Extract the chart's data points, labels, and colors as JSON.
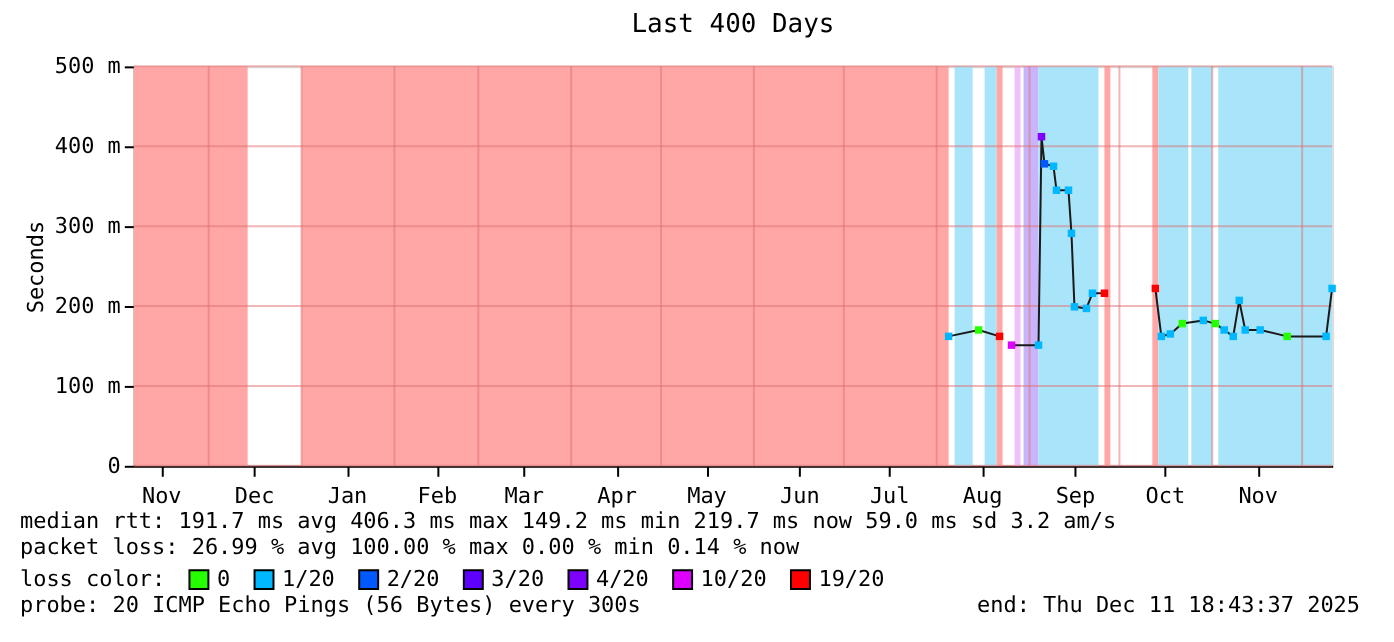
{
  "chart_data": {
    "type": "line",
    "title": "Last 400 Days",
    "ylabel": "Seconds",
    "legend_title": "loss color:",
    "legend": "bottom",
    "grid": true,
    "x": [
      "2025-08-05",
      "2025-08-15",
      "2025-08-22",
      "2025-08-24",
      "2025-08-26",
      "2025-09-04",
      "2025-09-05",
      "2025-09-06",
      "2025-09-09",
      "2025-09-10",
      "2025-09-14",
      "2025-09-15",
      "2025-09-16",
      "2025-09-20",
      "2025-09-22",
      "2025-09-26",
      "2025-10-01",
      "2025-10-13",
      "2025-10-15",
      "2025-10-18",
      "2025-10-22",
      "2025-10-29",
      "2025-11-02",
      "2025-11-05",
      "2025-11-08",
      "2025-11-10",
      "2025-11-12",
      "2025-11-17",
      "2025-11-26",
      "2025-12-09",
      "2025-12-11"
    ],
    "xlim": [
      "2024-11-06",
      "2025-12-11"
    ],
    "xticks": [
      {
        "value": "2024-11-15",
        "label": "Nov"
      },
      {
        "value": "2024-12-01",
        "label": null
      },
      {
        "value": "2024-12-16",
        "label": "Dec"
      },
      {
        "value": "2025-01-01",
        "label": null
      },
      {
        "value": "2025-01-16",
        "label": "Jan"
      },
      {
        "value": "2025-02-01",
        "label": null
      },
      {
        "value": "2025-02-15",
        "label": "Feb"
      },
      {
        "value": "2025-03-01",
        "label": null
      },
      {
        "value": "2025-03-16",
        "label": "Mar"
      },
      {
        "value": "2025-04-01",
        "label": null
      },
      {
        "value": "2025-04-16",
        "label": "Apr"
      },
      {
        "value": "2025-05-01",
        "label": null
      },
      {
        "value": "2025-05-16",
        "label": "May"
      },
      {
        "value": "2025-06-01",
        "label": null
      },
      {
        "value": "2025-06-16",
        "label": "Jun"
      },
      {
        "value": "2025-07-01",
        "label": null
      },
      {
        "value": "2025-07-16",
        "label": "Jul"
      },
      {
        "value": "2025-08-01",
        "label": null
      },
      {
        "value": "2025-08-16",
        "label": "Aug"
      },
      {
        "value": "2025-09-01",
        "label": null
      },
      {
        "value": "2025-09-16",
        "label": "Sep"
      },
      {
        "value": "2025-10-01",
        "label": null
      },
      {
        "value": "2025-10-16",
        "label": "Oct"
      },
      {
        "value": "2025-11-01",
        "label": null
      },
      {
        "value": "2025-11-16",
        "label": "Nov"
      },
      {
        "value": "2025-12-01",
        "label": null
      }
    ],
    "ylim": [
      0,
      500
    ],
    "yticks": [
      0,
      {
        "value": 100,
        "label": "100 m"
      },
      {
        "value": 200,
        "label": "200 m"
      },
      {
        "value": 300,
        "label": "300 m"
      },
      {
        "value": 400,
        "label": "400 m"
      },
      {
        "value": 500,
        "label": "500 m"
      }
    ],
    "series": [
      {
        "color": "#1a1a1a",
        "values": [
          162,
          170,
          162,
          null,
          151,
          151,
          412,
          378,
          375,
          345,
          345,
          291,
          199,
          197,
          216,
          216,
          null,
          222,
          162,
          165,
          178,
          182,
          178,
          170,
          162,
          207,
          170,
          170,
          162,
          162,
          222
        ]
      },
      {
        "name": "0",
        "type": "scatter",
        "marker": "square",
        "color": "#26ff00",
        "values": [
          null,
          170,
          null,
          null,
          null,
          null,
          null,
          null,
          null,
          null,
          null,
          null,
          null,
          null,
          null,
          null,
          null,
          null,
          null,
          null,
          178,
          null,
          178,
          null,
          null,
          null,
          null,
          null,
          162,
          null,
          null
        ]
      },
      {
        "name": "1/20",
        "type": "scatter",
        "marker": "square",
        "color": "#00b8ff",
        "values": [
          162,
          null,
          null,
          null,
          null,
          151,
          null,
          null,
          375,
          345,
          345,
          291,
          199,
          197,
          216,
          null,
          null,
          null,
          162,
          165,
          null,
          182,
          null,
          170,
          162,
          207,
          170,
          170,
          null,
          162,
          222
        ]
      },
      {
        "name": "2/20",
        "type": "scatter",
        "marker": "square",
        "color": "#0059ff",
        "values": [
          null,
          null,
          null,
          null,
          null,
          null,
          null,
          378,
          null,
          null,
          null,
          null,
          null,
          null,
          null,
          null,
          null,
          null,
          null,
          null,
          null,
          null,
          null,
          null,
          null,
          null,
          null,
          null,
          null,
          null,
          null
        ]
      },
      {
        "name": "3/20",
        "type": "scatter",
        "marker": "square",
        "color": "#5e00ff",
        "values": [
          null,
          null,
          null,
          null,
          null,
          null,
          null,
          null,
          null,
          null,
          null,
          null,
          null,
          null,
          null,
          null,
          null,
          null,
          null,
          null,
          null,
          null,
          null,
          null,
          null,
          null,
          null,
          null,
          null,
          null,
          null
        ]
      },
      {
        "name": "4/20",
        "type": "scatter",
        "marker": "square",
        "color": "#7e00ff",
        "values": [
          null,
          null,
          null,
          null,
          null,
          null,
          412,
          null,
          null,
          null,
          null,
          null,
          null,
          null,
          null,
          null,
          null,
          null,
          null,
          null,
          null,
          null,
          null,
          null,
          null,
          null,
          null,
          null,
          null,
          null,
          null
        ]
      },
      {
        "name": "10/20",
        "type": "scatter",
        "marker": "square",
        "color": "#dd00ff",
        "values": [
          null,
          null,
          null,
          null,
          151,
          null,
          null,
          null,
          null,
          null,
          null,
          null,
          null,
          null,
          null,
          null,
          null,
          null,
          null,
          null,
          null,
          null,
          null,
          null,
          null,
          null,
          null,
          null,
          null,
          null,
          null
        ]
      },
      {
        "name": "19/20",
        "type": "scatter",
        "marker": "square",
        "color": "#ff0000",
        "values": [
          null,
          null,
          162,
          null,
          null,
          null,
          null,
          null,
          null,
          null,
          null,
          null,
          null,
          null,
          null,
          216,
          null,
          222,
          null,
          null,
          null,
          null,
          null,
          null,
          null,
          null,
          null,
          null,
          null,
          null,
          null
        ]
      }
    ],
    "bands": [
      {
        "axis": "x",
        "from": "2024-11-06",
        "to": "2024-12-14",
        "color": "#ffa6a6"
      },
      {
        "axis": "x",
        "from": "2025-01-01",
        "to": "2025-08-05",
        "color": "#ffa6a6"
      },
      {
        "axis": "x",
        "from": "2025-08-07",
        "to": "2025-08-13",
        "color": "#a8e4fa"
      },
      {
        "axis": "x",
        "from": "2025-08-17",
        "to": "2025-08-21",
        "color": "#a8e4fa"
      },
      {
        "axis": "x",
        "from": "2025-08-21",
        "to": "2025-08-23",
        "color": "#ffa6a6"
      },
      {
        "axis": "x",
        "from": "2025-08-27",
        "to": "2025-08-29",
        "color": "#f0c0f8"
      },
      {
        "axis": "x",
        "from": "2025-08-30",
        "to": "2025-09-04",
        "color": "#c8b4fa"
      },
      {
        "axis": "x",
        "from": "2025-09-04",
        "to": "2025-09-24",
        "color": "#a8e4fa"
      },
      {
        "axis": "x",
        "from": "2025-09-26",
        "to": "2025-09-28",
        "color": "#ffa6a6"
      },
      {
        "axis": "x",
        "from": "2025-10-12",
        "to": "2025-10-14",
        "color": "#ffa6a6"
      },
      {
        "axis": "x",
        "from": "2025-10-14",
        "to": "2025-10-24",
        "color": "#a8e4fa"
      },
      {
        "axis": "x",
        "from": "2025-10-25",
        "to": "2025-11-01",
        "color": "#a8e4fa"
      },
      {
        "axis": "x",
        "from": "2025-11-03",
        "to": "2025-12-11",
        "color": "#a8e4fa"
      }
    ],
    "annotations": [
      "median rtt:  191.7 ms avg  406.3 ms max  149.2 ms min  219.7 ms now  59.0 ms sd  3.2   am/s",
      "packet loss: 26.99 % avg  100.00 % max  0.00 % min  0.14 % now",
      "probe:       20 ICMP Echo Pings (56 Bytes) every 300s",
      "end: Thu Dec 11 18:43:37 2025"
    ]
  }
}
